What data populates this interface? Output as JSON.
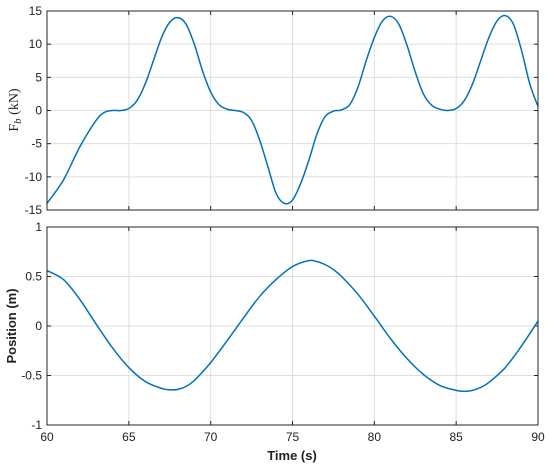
{
  "chart_data": [
    {
      "type": "line",
      "title": "",
      "xlabel": "",
      "ylabel": "F",
      "ylabel_sub": "b",
      "ylabel_unit": " (kN)",
      "xlim": [
        60,
        90
      ],
      "ylim": [
        -15,
        15
      ],
      "xticks": [
        60,
        65,
        70,
        75,
        80,
        85,
        90
      ],
      "yticks": [
        -15,
        -10,
        -5,
        0,
        5,
        10,
        15
      ],
      "xtick_labels_visible": false,
      "grid": true,
      "color": "#0072BD",
      "series": [
        {
          "x": [
            60,
            61,
            62,
            63,
            63.5,
            64,
            64.5,
            65,
            65.5,
            66,
            66.5,
            67,
            67.5,
            68,
            68.5,
            69,
            69.5,
            70,
            70.5,
            71,
            71.5,
            72,
            72.5,
            73,
            73.5,
            74,
            74.5,
            75,
            75.5,
            76,
            76.5,
            77,
            77.5,
            77.8,
            78,
            78.5,
            79,
            79.5,
            80,
            80.5,
            81,
            81.5,
            82,
            82.5,
            83,
            83.5,
            84,
            84.5,
            85,
            85.5,
            86,
            86.5,
            87,
            87.5,
            88,
            88.5,
            89,
            89.5,
            90
          ],
          "y": [
            -14,
            -10.5,
            -5.5,
            -1.5,
            -0.3,
            0,
            0,
            0.3,
            1.5,
            4,
            7.5,
            11,
            13.3,
            14,
            13,
            10,
            6,
            2.8,
            0.9,
            0.2,
            0,
            -0.3,
            -1.5,
            -4.5,
            -8.5,
            -12.5,
            -14,
            -13.5,
            -11,
            -7.5,
            -3.5,
            -0.9,
            -0.1,
            0,
            0.1,
            0.9,
            3.5,
            7.5,
            11,
            13.5,
            14.2,
            13,
            9.8,
            5.8,
            2.5,
            0.8,
            0.2,
            0,
            0.3,
            1.5,
            4,
            7.5,
            11,
            13.5,
            14.3,
            13,
            9,
            4,
            0.6
          ]
        }
      ]
    },
    {
      "type": "line",
      "title": "",
      "xlabel": "Time (s)",
      "ylabel": "Position (m)",
      "xlim": [
        60,
        90
      ],
      "ylim": [
        -1,
        1
      ],
      "xticks": [
        60,
        65,
        70,
        75,
        80,
        85,
        90
      ],
      "yticks": [
        -1,
        -0.5,
        0,
        0.5,
        1
      ],
      "grid": true,
      "color": "#0072BD",
      "series": [
        {
          "x": [
            60,
            61,
            62,
            63,
            64,
            65,
            66,
            67,
            67.5,
            68,
            68.5,
            69,
            70,
            71,
            72,
            73,
            74,
            75,
            76,
            76.5,
            77,
            77.5,
            78,
            79,
            80,
            81,
            82,
            83,
            84,
            85,
            85.5,
            86,
            86.5,
            87,
            88,
            89,
            90
          ],
          "y": [
            0.56,
            0.47,
            0.27,
            0.02,
            -0.22,
            -0.42,
            -0.56,
            -0.63,
            -0.645,
            -0.64,
            -0.61,
            -0.55,
            -0.37,
            -0.15,
            0.08,
            0.3,
            0.47,
            0.6,
            0.66,
            0.65,
            0.62,
            0.57,
            0.5,
            0.32,
            0.1,
            -0.13,
            -0.33,
            -0.49,
            -0.6,
            -0.65,
            -0.66,
            -0.65,
            -0.62,
            -0.57,
            -0.42,
            -0.2,
            0.05
          ]
        }
      ]
    }
  ]
}
